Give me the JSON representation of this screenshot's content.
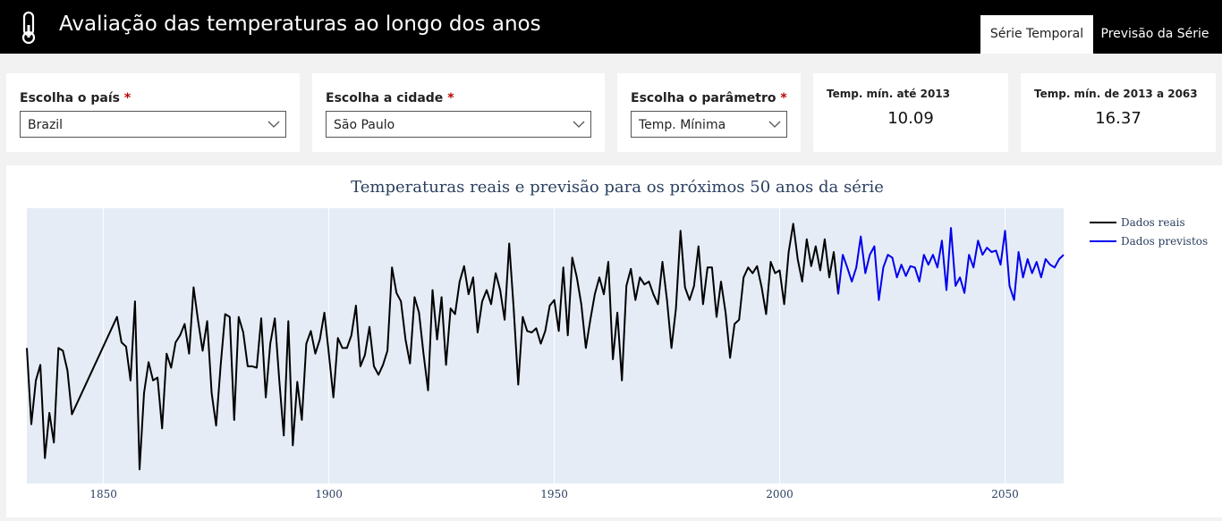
{
  "header": {
    "title": "Avaliação das temperaturas ao longo dos anos"
  },
  "tabs": [
    "Série Temporal",
    "Previsão da Série"
  ],
  "filters": [
    {
      "label": "Escolha o país",
      "required_mark": "*",
      "value": "Brazil"
    },
    {
      "label": "Escolha a cidade",
      "required_mark": "*",
      "value": "São Paulo"
    },
    {
      "label": "Escolha o parâmetro",
      "required_mark": "*",
      "value": "Temp. Mínima"
    }
  ],
  "kpis": [
    {
      "label": "Temp. mín. até 2013",
      "value": 10.09
    },
    {
      "label": "Temp. mín. de 2013 a 2063",
      "value": 16.37
    }
  ],
  "chart_data": {
    "type": "line",
    "title": "Temperaturas reais e previsão para os próximos 50 anos da série",
    "xlim": [
      1833,
      2063
    ],
    "xticks": [
      1850,
      1900,
      1950,
      2000,
      2050
    ],
    "ylim": [
      0.5,
      20
    ],
    "grid": true,
    "legend": "right",
    "series": [
      {
        "name": "Dados reais",
        "color": "#000000",
        "x": [
          1833,
          1834,
          1835,
          1836,
          1837,
          1838,
          1839,
          1840,
          1841,
          1842,
          1843,
          1853,
          1854,
          1855,
          1856,
          1857,
          1858,
          1859,
          1860,
          1861,
          1862,
          1863,
          1864,
          1865,
          1866,
          1867,
          1868,
          1869,
          1870,
          1871,
          1872,
          1873,
          1874,
          1875,
          1876,
          1877,
          1878,
          1879,
          1880,
          1881,
          1882,
          1883,
          1884,
          1885,
          1886,
          1887,
          1888,
          1889,
          1890,
          1891,
          1892,
          1893,
          1894,
          1895,
          1896,
          1897,
          1898,
          1899,
          1900,
          1901,
          1902,
          1903,
          1904,
          1905,
          1906,
          1907,
          1908,
          1909,
          1910,
          1911,
          1912,
          1913,
          1914,
          1915,
          1916,
          1917,
          1918,
          1919,
          1920,
          1921,
          1922,
          1923,
          1924,
          1925,
          1926,
          1927,
          1928,
          1929,
          1930,
          1931,
          1932,
          1933,
          1934,
          1935,
          1936,
          1937,
          1938,
          1939,
          1940,
          1941,
          1942,
          1943,
          1944,
          1945,
          1946,
          1947,
          1948,
          1949,
          1950,
          1951,
          1952,
          1953,
          1954,
          1955,
          1956,
          1957,
          1958,
          1959,
          1960,
          1961,
          1962,
          1963,
          1964,
          1965,
          1966,
          1967,
          1968,
          1969,
          1970,
          1971,
          1972,
          1973,
          1974,
          1975,
          1976,
          1977,
          1978,
          1979,
          1980,
          1981,
          1982,
          1983,
          1984,
          1985,
          1986,
          1987,
          1988,
          1989,
          1990,
          1991,
          1992,
          1993,
          1994,
          1995,
          1996,
          1997,
          1998,
          1999,
          2000,
          2001,
          2002,
          2003,
          2004,
          2005,
          2006,
          2007,
          2008,
          2009,
          2010,
          2011,
          2012,
          2013
        ],
        "values": [
          10.1,
          4.7,
          7.8,
          8.9,
          2.3,
          5.5,
          3.4,
          10.1,
          9.9,
          8.5,
          5.4,
          12.3,
          10.5,
          10.2,
          7.8,
          13.4,
          1.5,
          6.9,
          9.1,
          7.8,
          8.0,
          4.4,
          9.7,
          8.7,
          10.5,
          11.0,
          11.8,
          9.7,
          14.4,
          12.0,
          9.9,
          12.0,
          6.9,
          4.6,
          8.9,
          12.5,
          12.3,
          5.0,
          12.3,
          11.2,
          8.8,
          8.8,
          8.7,
          12.2,
          6.6,
          10.4,
          12.2,
          7.8,
          3.9,
          12.0,
          3.2,
          7.7,
          5.0,
          10.4,
          11.3,
          9.7,
          10.7,
          12.6,
          9.7,
          6.6,
          10.8,
          10.1,
          10.1,
          11.0,
          13.1,
          8.8,
          9.6,
          11.6,
          8.8,
          8.2,
          8.9,
          9.9,
          15.8,
          14.0,
          13.4,
          10.7,
          9.0,
          13.7,
          12.6,
          9.7,
          7.1,
          14.2,
          10.7,
          13.7,
          8.9,
          12.9,
          12.5,
          14.8,
          15.9,
          13.9,
          15.1,
          11.2,
          13.4,
          14.2,
          13.2,
          15.4,
          14.2,
          12.1,
          17.5,
          12.9,
          7.5,
          12.3,
          11.3,
          11.2,
          11.5,
          10.4,
          11.3,
          13.1,
          13.5,
          11.3,
          15.8,
          11.0,
          16.5,
          15.1,
          13.2,
          10.1,
          12.1,
          13.9,
          15.1,
          13.9,
          16.2,
          9.3,
          12.6,
          7.8,
          14.5,
          15.7,
          13.5,
          15.1,
          14.6,
          14.8,
          13.9,
          13.2,
          16.2,
          13.5,
          10.1,
          12.9,
          18.4,
          14.4,
          13.5,
          14.5,
          17.3,
          13.2,
          15.8,
          15.8,
          12.3,
          14.8,
          12.6,
          9.4,
          11.8,
          12.1,
          15.1,
          15.8,
          15.4,
          15.9,
          14.4,
          12.5,
          16.2,
          15.4,
          15.6,
          13.2,
          16.9,
          18.9,
          16.4,
          14.8,
          17.8,
          15.9,
          17.3,
          15.6,
          17.8,
          15.1,
          16.9,
          13.9
        ]
      },
      {
        "name": "Dados previstos",
        "color": "#0000ee",
        "x": [
          2013,
          2014,
          2015,
          2016,
          2017,
          2018,
          2019,
          2020,
          2021,
          2022,
          2023,
          2024,
          2025,
          2026,
          2027,
          2028,
          2029,
          2030,
          2031,
          2032,
          2033,
          2034,
          2035,
          2036,
          2037,
          2038,
          2039,
          2040,
          2041,
          2042,
          2043,
          2044,
          2045,
          2046,
          2047,
          2048,
          2049,
          2050,
          2051,
          2052,
          2053,
          2054,
          2055,
          2056,
          2057,
          2058,
          2059,
          2060,
          2061,
          2062,
          2063
        ],
        "values": [
          13.9,
          16.7,
          15.8,
          14.8,
          15.8,
          18.0,
          15.4,
          16.7,
          17.3,
          13.5,
          15.8,
          16.7,
          16.5,
          15.1,
          16.0,
          15.2,
          15.9,
          15.8,
          14.8,
          16.7,
          16.0,
          16.7,
          15.8,
          17.7,
          14.2,
          18.6,
          14.5,
          15.1,
          14.0,
          16.7,
          15.8,
          17.7,
          16.7,
          17.2,
          16.9,
          17.0,
          16.0,
          18.4,
          14.5,
          13.5,
          16.9,
          15.1,
          16.4,
          15.4,
          16.2,
          15.1,
          16.4,
          16.0,
          15.8,
          16.4,
          16.7
        ]
      }
    ]
  }
}
